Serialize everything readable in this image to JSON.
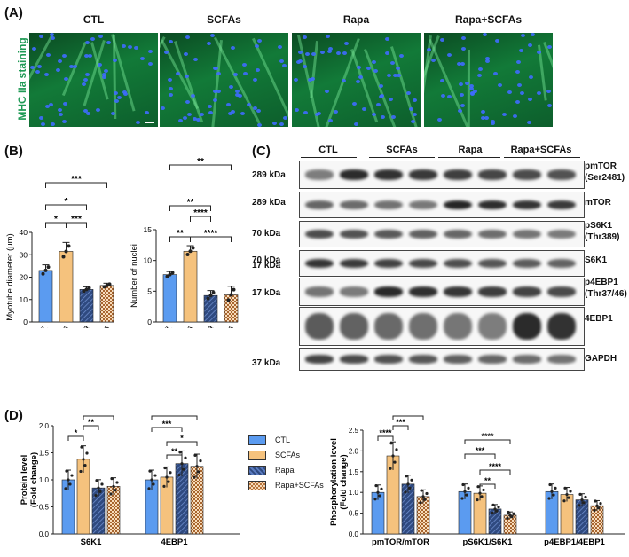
{
  "panels": {
    "A": "(A)",
    "B": "(B)",
    "C": "(C)",
    "D": "(D)"
  },
  "groups": [
    "CTL",
    "SCFAs",
    "Rapa",
    "Rapa+SCFAs"
  ],
  "colors": {
    "CTL": "#5b9bf0",
    "SCFAs": "#f5c27d",
    "Rapa": "#2f4a80",
    "Rapa+SCFAs": "#f0c79a",
    "stain": "#1f9a55"
  },
  "panel_a": {
    "stain_label": "MHC IIa staining"
  },
  "panel_c": {
    "rows": [
      {
        "kda": "289 kDa",
        "name": "pmTOR",
        "name2": "(Ser2481)"
      },
      {
        "kda": "289 kDa",
        "name": "mTOR",
        "name2": ""
      },
      {
        "kda": "70 kDa",
        "name": "pS6K1",
        "name2": "(Thr389)"
      },
      {
        "kda": "70 kDa",
        "name": "S6K1",
        "name2": ""
      },
      {
        "kda": "17 kDa",
        "name": "p4EBP1",
        "name2": "(Thr37/46)"
      },
      {
        "kda": "17 kDa",
        "name": "4EBP1",
        "name2": ""
      },
      {
        "kda": "37 kDa",
        "name": "GAPDH",
        "name2": ""
      }
    ]
  },
  "chart_data": [
    {
      "type": "bar",
      "title": "",
      "xlabel": "",
      "ylabel": "Myotube diameter (μm)",
      "categories": [
        "CTL",
        "SCFAs",
        "Rapa",
        "Rapa+SCFAs"
      ],
      "values": [
        23,
        31.5,
        14.5,
        16.3
      ],
      "errors": [
        2.5,
        4,
        1.2,
        1
      ],
      "ylim": [
        0,
        40
      ],
      "yticks": [
        "0",
        "10",
        "20",
        "30",
        "40"
      ],
      "significance": [
        "*",
        "*",
        "***",
        "***"
      ]
    },
    {
      "type": "bar",
      "title": "",
      "xlabel": "",
      "ylabel": "Number of nuclei",
      "categories": [
        "CTL",
        "SCFAs",
        "Rapa",
        "Rapa+SCFAs"
      ],
      "values": [
        7.7,
        11.5,
        4.3,
        4.4
      ],
      "errors": [
        0.5,
        0.9,
        0.8,
        1.4
      ],
      "ylim": [
        0,
        15
      ],
      "yticks": [
        "0",
        "5",
        "10",
        "15"
      ],
      "significance": [
        "**",
        "**",
        "****",
        "**",
        "****"
      ]
    },
    {
      "type": "bar",
      "title": "",
      "xlabel": "",
      "ylabel": "Protein level",
      "ylabel2": "(Fold change)",
      "categories": [
        "S6K1",
        "4EBP1"
      ],
      "series": [
        {
          "name": "CTL",
          "values": [
            1.0,
            1.0
          ]
        },
        {
          "name": "SCFAs",
          "values": [
            1.38,
            1.05
          ]
        },
        {
          "name": "Rapa",
          "values": [
            0.85,
            1.3
          ]
        },
        {
          "name": "Rapa+SCFAs",
          "values": [
            0.88,
            1.25
          ]
        }
      ],
      "ylim": [
        0,
        2.0
      ],
      "yticks": [
        "0.0",
        "0.5",
        "1.0",
        "1.5",
        "2.0"
      ],
      "significance_S6K1": [
        "*",
        "**",
        "**"
      ],
      "significance_4EBP1": [
        "**",
        "*",
        "***",
        "**"
      ]
    },
    {
      "type": "bar",
      "title": "",
      "xlabel": "",
      "ylabel": "Phosphorylation level",
      "ylabel2": "(Fold change)",
      "categories": [
        "pmTOR/mTOR",
        "pS6K1/S6K1",
        "p4EBP1/4EBP1"
      ],
      "series": [
        {
          "name": "CTL",
          "values": [
            1.0,
            1.02,
            1.02
          ]
        },
        {
          "name": "SCFAs",
          "values": [
            1.88,
            0.98,
            0.95
          ]
        },
        {
          "name": "Rapa",
          "values": [
            1.2,
            0.6,
            0.82
          ]
        },
        {
          "name": "Rapa+SCFAs",
          "values": [
            0.9,
            0.45,
            0.68
          ]
        }
      ],
      "ylim": [
        0,
        2.5
      ],
      "yticks": [
        "0.0",
        "0.5",
        "1.0",
        "1.5",
        "2.0",
        "2.5"
      ],
      "significance_pmTOR": [
        "****",
        "***",
        "****"
      ],
      "significance_pS6K1": [
        "**",
        "****",
        "***",
        "****"
      ]
    }
  ]
}
